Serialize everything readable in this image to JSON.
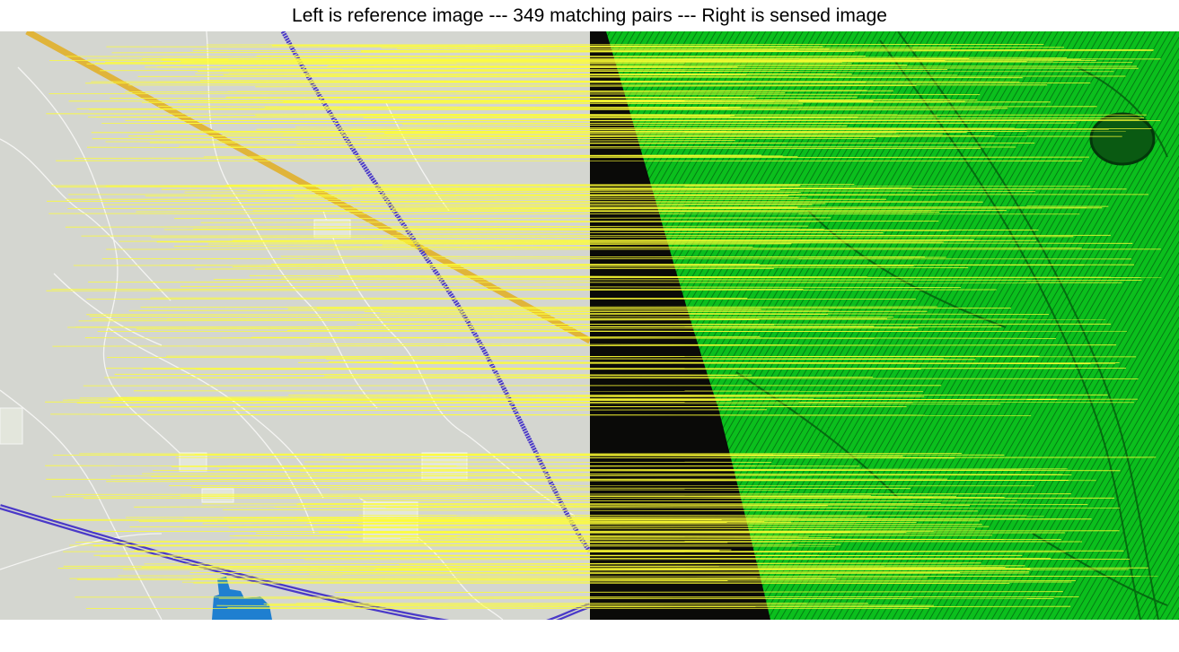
{
  "title": "Left is reference image --- 349 matching pairs --- Right is sensed image",
  "panels": {
    "left": {
      "label": "reference image"
    },
    "right": {
      "label": "sensed image"
    }
  },
  "match_count": 349,
  "colors": {
    "match_line": "#ffff33",
    "map_background": "#d4d6d0",
    "map_roads": "#f4f4f2",
    "railway": "#4a39c8",
    "highway": "#e0b43a",
    "water": "#1f7fd0",
    "image_dark": "#0a0a08",
    "vegetation": "#1fd025"
  }
}
